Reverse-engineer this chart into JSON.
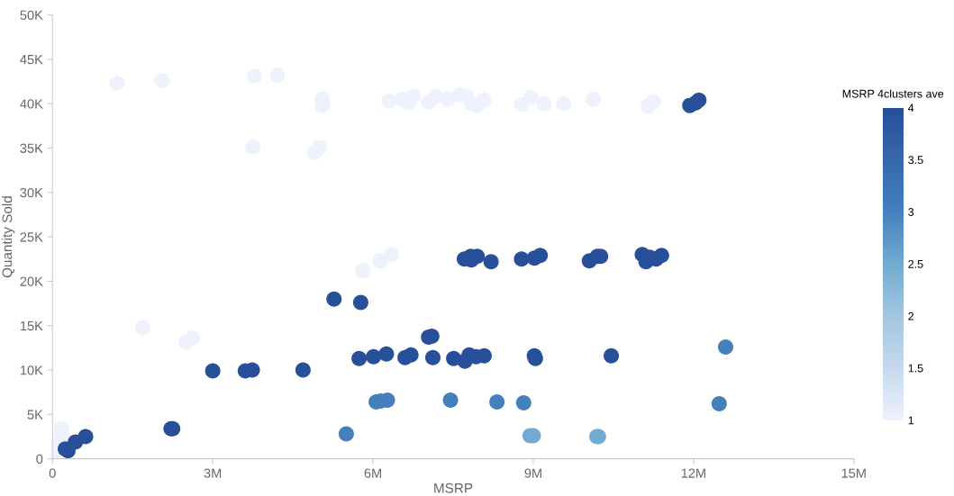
{
  "chart_data": {
    "type": "scatter",
    "xlabel": "MSRP",
    "ylabel": "Quantity Sold",
    "clabel": "MSRP 4clusters ave",
    "xlim": [
      0,
      15000000
    ],
    "xticks": [
      0,
      {
        "value": 3000000,
        "label": "3M"
      },
      {
        "value": 6000000,
        "label": "6M"
      },
      {
        "value": 9000000,
        "label": "9M"
      },
      {
        "value": 12000000,
        "label": "12M"
      },
      {
        "value": 15000000,
        "label": "15M"
      }
    ],
    "ylim": [
      0,
      50000
    ],
    "yticks": [
      0,
      {
        "value": 5000,
        "label": "5K"
      },
      {
        "value": 10000,
        "label": "10K"
      },
      {
        "value": 15000,
        "label": "15K"
      },
      {
        "value": 20000,
        "label": "20K"
      },
      {
        "value": 25000,
        "label": "25K"
      },
      {
        "value": 30000,
        "label": "30K"
      },
      {
        "value": 35000,
        "label": "35K"
      },
      {
        "value": 40000,
        "label": "40K"
      },
      {
        "value": 45000,
        "label": "45K"
      },
      {
        "value": 50000,
        "label": "50K"
      }
    ],
    "clim": [
      1,
      4
    ],
    "cticks": [
      1,
      1.5,
      2,
      2.5,
      3,
      3.5,
      4
    ],
    "grid": false,
    "legend": false,
    "marker": "circle",
    "x": [
      1210000,
      2050000,
      3780000,
      4210000,
      5050000,
      5050000,
      3750000,
      5000000,
      4900000,
      6300000,
      6540000,
      6660000,
      6750000,
      7040000,
      7170000,
      7400000,
      7620000,
      7840000,
      7760000,
      7950000,
      8070000,
      8780000,
      8960000,
      9200000,
      9570000,
      10120000,
      11150000,
      11250000,
      5810000,
      6130000,
      6340000,
      1690000,
      2500000,
      2620000,
      170000,
      170000,
      90000,
      320000,
      50000,
      11930000,
      12040000,
      12100000,
      240000,
      290000,
      430000,
      620000,
      2220000,
      2250000,
      3000000,
      3610000,
      3740000,
      4690000,
      5270000,
      5770000,
      5740000,
      6010000,
      6250000,
      6600000,
      6710000,
      7040000,
      7100000,
      7120000,
      7510000,
      7800000,
      7710000,
      7830000,
      7840000,
      7950000,
      8210000,
      8780000,
      9020000,
      9130000,
      10050000,
      10200000,
      10260000,
      11040000,
      11180000,
      11110000,
      11300000,
      11400000,
      7720000,
      7930000,
      8080000,
      9020000,
      9040000,
      10460000,
      5500000,
      6060000,
      6140000,
      6270000,
      7450000,
      8320000,
      8820000,
      12480000,
      12600000,
      8940000,
      9000000,
      10190000,
      10220000
    ],
    "values": [
      42300,
      42600,
      43100,
      43200,
      40500,
      39800,
      35100,
      35100,
      34500,
      40300,
      40500,
      40100,
      40800,
      40200,
      40800,
      40500,
      41000,
      40000,
      40800,
      39800,
      40400,
      39900,
      40700,
      40000,
      40000,
      40500,
      39700,
      40200,
      21200,
      22300,
      23000,
      14800,
      13100,
      13600,
      3400,
      2900,
      1700,
      1700,
      800,
      39800,
      40100,
      40400,
      1100,
      900,
      1900,
      2500,
      3400,
      3400,
      9900,
      9900,
      10000,
      10000,
      18000,
      17600,
      11300,
      11500,
      11800,
      11400,
      11700,
      13700,
      13800,
      11400,
      11300,
      11700,
      22500,
      22800,
      22400,
      22800,
      22200,
      22500,
      22600,
      22900,
      22300,
      22800,
      22800,
      23000,
      22700,
      22200,
      22500,
      22900,
      11000,
      11500,
      11600,
      11600,
      11300,
      11600,
      2800,
      6400,
      6500,
      6600,
      6600,
      6400,
      6300,
      6200,
      12600,
      2600,
      2600,
      2500,
      2500
    ],
    "cvalues": [
      1,
      1,
      1,
      1,
      1,
      1,
      1,
      1,
      1,
      1,
      1,
      1,
      1,
      1,
      1,
      1,
      1,
      1,
      1,
      1,
      1,
      1,
      1,
      1,
      1,
      1,
      1,
      1,
      1,
      1,
      1,
      1,
      1,
      1,
      1,
      1,
      1,
      1,
      1,
      4,
      4,
      4,
      4,
      4,
      4,
      4,
      4,
      4,
      4,
      4,
      4,
      4,
      4,
      4,
      4,
      4,
      4,
      4,
      4,
      4,
      4,
      4,
      4,
      4,
      4,
      4,
      4,
      4,
      4,
      4,
      4,
      4,
      4,
      4,
      4,
      4,
      4,
      4,
      4,
      4,
      4,
      4,
      4,
      4,
      4,
      4,
      3,
      3,
      3,
      3,
      3,
      3,
      3,
      3,
      3,
      2.5,
      2.5,
      2.5,
      2.5
    ]
  }
}
